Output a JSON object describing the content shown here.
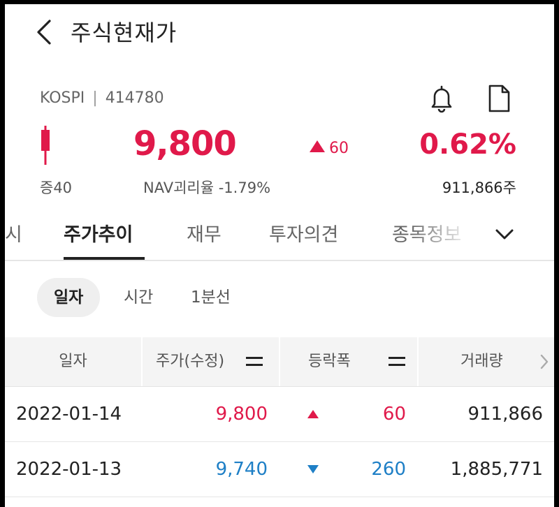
{
  "header": {
    "title": "주식현재가"
  },
  "stock": {
    "market": "KOSPI",
    "separator": "|",
    "code": "414780",
    "price": "9,800",
    "change": "60",
    "change_pct": "0.62%",
    "margin": "증40",
    "nav_disparity": "NAV괴리율 -1.79%",
    "volume": "911,866주"
  },
  "tabs": [
    {
      "label": "시"
    },
    {
      "label": "주가추이"
    },
    {
      "label": "재무"
    },
    {
      "label": "투자의견"
    },
    {
      "label": "종목정보"
    }
  ],
  "active_tab": "주가추이",
  "periods": [
    {
      "label": "일자"
    },
    {
      "label": "시간"
    },
    {
      "label": "1분선"
    }
  ],
  "table": {
    "columns": [
      "일자",
      "주가(수정)",
      "등락폭",
      "거래량"
    ],
    "rows": [
      {
        "date": "2022-01-14",
        "price": "9,800",
        "direction": "up",
        "change": "60",
        "volume": "911,866"
      },
      {
        "date": "2022-01-13",
        "price": "9,740",
        "direction": "down",
        "change": "260",
        "volume": "1,885,771"
      }
    ]
  },
  "colors": {
    "up": "#e0194a",
    "down": "#1e7fc6",
    "text": "#222222",
    "header_bg": "#f4f4f4"
  },
  "icons": [
    "back-arrow-icon",
    "bell-icon",
    "document-icon",
    "candlestick-icon",
    "chevron-down-icon",
    "sort-icon",
    "chevron-right-icon"
  ]
}
